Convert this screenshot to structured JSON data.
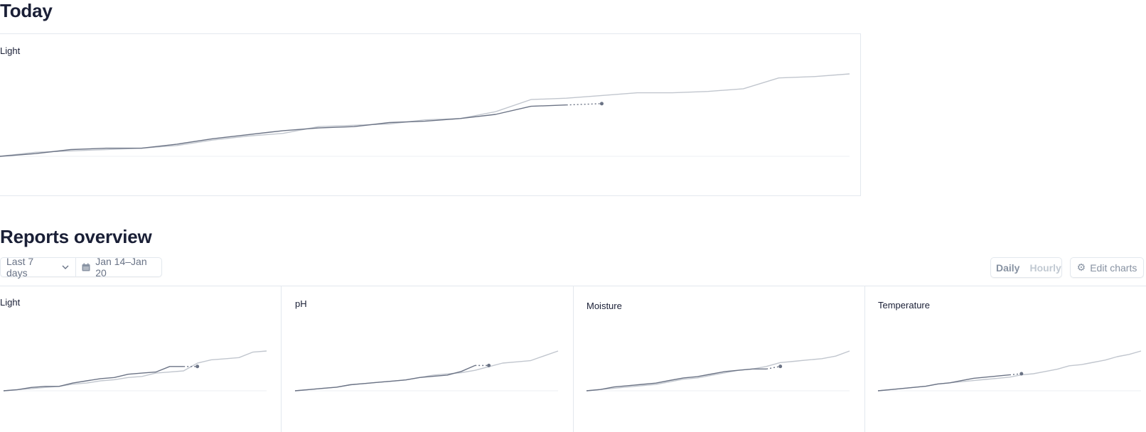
{
  "today": {
    "title": "Today",
    "chart": {
      "label": "Light"
    }
  },
  "reports": {
    "title": "Reports overview",
    "range_label": "Last 7 days",
    "date_label": "Jan 14–Jan 20",
    "toggle": {
      "daily": "Daily",
      "hourly": "Hourly",
      "selected": "Daily"
    },
    "edit_label": "Edit charts",
    "charts": [
      {
        "label": "Light"
      },
      {
        "label": "pH"
      },
      {
        "label": "Moisture"
      },
      {
        "label": "Temperature"
      }
    ]
  },
  "colors": {
    "current": "#6b7385",
    "previous": "#c1c6ce",
    "baseline": "#eceff3",
    "border": "#e3e8ee"
  },
  "icons": [
    "chevron-down-icon",
    "calendar-icon",
    "gear-icon"
  ],
  "chart_data": [
    {
      "type": "line",
      "title": "Light",
      "series": [
        {
          "values": [
            0,
            2,
            5,
            6,
            6,
            9,
            13,
            16,
            19,
            21,
            22,
            25,
            26,
            28,
            31,
            37,
            38
          ],
          "projected_next": 39
        },
        {
          "values": [
            0,
            3,
            4,
            5,
            6,
            8,
            12,
            15,
            17,
            22,
            23,
            24,
            27,
            28,
            33,
            42,
            43,
            45,
            47,
            47,
            48,
            50,
            58,
            59,
            61
          ]
        }
      ],
      "grid": false
    },
    {
      "type": "line",
      "title": "Light",
      "series": [
        {
          "values": [
            0,
            1,
            3,
            4,
            4,
            7,
            9,
            11,
            12,
            15,
            16,
            17,
            22,
            22
          ],
          "projected_next": 22
        },
        {
          "values": [
            0,
            1,
            2,
            3,
            4,
            6,
            7,
            9,
            10,
            12,
            13,
            16,
            17,
            18,
            25,
            28,
            29,
            30,
            35,
            36
          ]
        }
      ]
    },
    {
      "type": "line",
      "title": "pH",
      "series": [
        {
          "values": [
            0,
            1,
            2,
            3,
            5,
            6,
            7,
            8,
            9,
            11,
            12,
            13,
            16,
            21
          ],
          "projected_next": 21
        },
        {
          "values": [
            0,
            1,
            2,
            3,
            5,
            6,
            7,
            8,
            9,
            11,
            13,
            14,
            15,
            17,
            20,
            23,
            24,
            25,
            29,
            33
          ]
        }
      ]
    },
    {
      "type": "line",
      "title": "Moisture",
      "series": [
        {
          "values": [
            0,
            1,
            3,
            4,
            5,
            6,
            8,
            10,
            11,
            13,
            15,
            16,
            17,
            17
          ],
          "projected_next": 19
        },
        {
          "values": [
            0,
            1,
            2,
            3,
            4,
            5,
            7,
            9,
            10,
            12,
            14,
            16,
            17,
            19,
            22,
            23,
            24,
            25,
            27,
            31
          ]
        }
      ]
    },
    {
      "type": "line",
      "title": "Temperature",
      "series": [
        {
          "values": [
            0,
            1,
            2,
            3,
            4,
            6,
            7,
            9,
            11,
            12,
            13,
            14
          ],
          "projected_next": 15
        },
        {
          "values": [
            0,
            1,
            2,
            3,
            4,
            6,
            7,
            8,
            9,
            10,
            11,
            12,
            14,
            15,
            17,
            19,
            22,
            23,
            25,
            27,
            30,
            32,
            35
          ]
        }
      ]
    }
  ]
}
